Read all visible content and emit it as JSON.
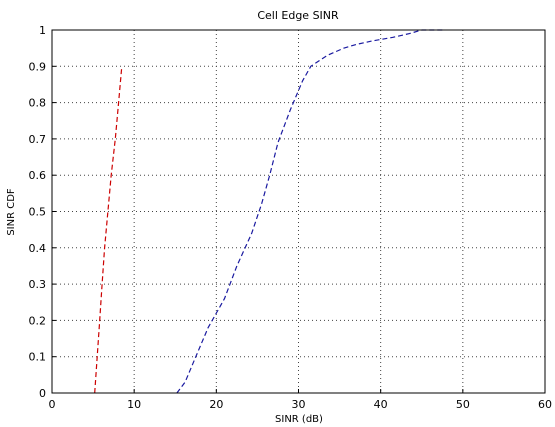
{
  "chart_data": {
    "type": "line",
    "title": "Cell Edge SINR",
    "xlabel": "SINR (dB)",
    "ylabel": "SINR CDF",
    "xlim": [
      0,
      60
    ],
    "ylim": [
      0,
      1
    ],
    "grid": true,
    "x_ticks": [
      "0",
      "10",
      "20",
      "30",
      "40",
      "50",
      "60"
    ],
    "y_ticks": [
      "0",
      "0.1",
      "0.2",
      "0.3",
      "0.4",
      "0.5",
      "0.6",
      "0.7",
      "0.8",
      "0.9",
      "1"
    ],
    "series": [
      {
        "color": "#cc0000",
        "dash": "dashed",
        "x": [
          5.2,
          5.5,
          5.8,
          6.1,
          6.4,
          6.8,
          7.2,
          7.7,
          8.1,
          8.5
        ],
        "y": [
          0.0,
          0.1,
          0.2,
          0.3,
          0.4,
          0.5,
          0.6,
          0.7,
          0.8,
          0.9
        ]
      },
      {
        "color": "#1a1aa0",
        "dash": "dashed",
        "x": [
          15.2,
          16.2,
          17.5,
          19.0,
          21.0,
          22.5,
          24.3,
          25.5,
          26.5,
          27.5,
          29.0,
          30.5,
          31.5,
          33.5,
          35.5,
          37.0,
          39.0,
          41.5,
          43.5,
          45.0,
          47.5
        ],
        "y": [
          0.0,
          0.03,
          0.1,
          0.18,
          0.26,
          0.35,
          0.44,
          0.52,
          0.6,
          0.69,
          0.78,
          0.86,
          0.9,
          0.93,
          0.95,
          0.96,
          0.97,
          0.98,
          0.99,
          1.0,
          1.0
        ]
      }
    ]
  }
}
